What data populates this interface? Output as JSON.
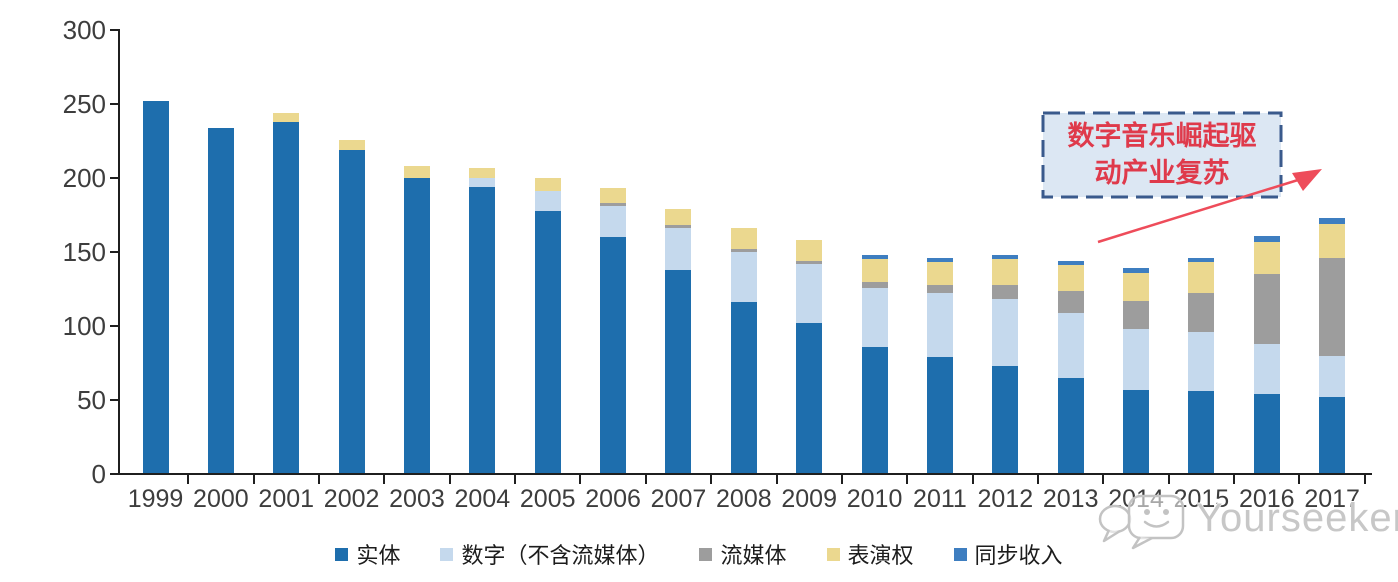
{
  "chart_data": {
    "type": "bar",
    "stacked": true,
    "title": "",
    "xlabel": "",
    "ylabel": "",
    "categories": [
      "1999",
      "2000",
      "2001",
      "2002",
      "2003",
      "2004",
      "2005",
      "2006",
      "2007",
      "2008",
      "2009",
      "2010",
      "2011",
      "2012",
      "2013",
      "2014",
      "2015",
      "2016",
      "2017"
    ],
    "series": [
      {
        "name": "实体",
        "color": "#1E6EAD",
        "values": [
          252,
          234,
          238,
          219,
          200,
          194,
          178,
          160,
          138,
          116,
          102,
          86,
          79,
          73,
          65,
          57,
          56,
          54,
          52
        ]
      },
      {
        "name": "数字（不含流媒体）",
        "color": "#C5D9ED",
        "values": [
          0,
          0,
          0,
          0,
          0,
          6,
          13,
          21,
          28,
          34,
          40,
          40,
          43,
          45,
          44,
          41,
          40,
          34,
          28
        ]
      },
      {
        "name": "流媒体",
        "color": "#9D9D9D",
        "values": [
          0,
          0,
          0,
          0,
          0,
          0,
          0,
          2,
          2,
          2,
          2,
          4,
          6,
          10,
          15,
          19,
          26,
          47,
          66
        ]
      },
      {
        "name": "表演权",
        "color": "#EBD88F",
        "values": [
          0,
          0,
          6,
          7,
          8,
          7,
          9,
          10,
          11,
          14,
          14,
          15,
          15,
          17,
          17,
          19,
          21,
          22,
          23
        ]
      },
      {
        "name": "同步收入",
        "color": "#3E7EC0",
        "values": [
          0,
          0,
          0,
          0,
          0,
          0,
          0,
          0,
          0,
          0,
          0,
          3,
          3,
          3,
          3,
          3,
          3,
          4,
          4
        ]
      }
    ],
    "ylim": [
      0,
      300
    ],
    "yticks": [
      0,
      50,
      100,
      150,
      200,
      250,
      300
    ],
    "grid": false,
    "legend_position": "bottom",
    "axis_color": "#1f1f1f",
    "tick_label_color": "#3d3d3d"
  },
  "annotation": {
    "lines": [
      "数字音乐崛起驱",
      "动产业复苏"
    ],
    "text_color": "#DF3A4B",
    "box_fill": "#DCE7F3",
    "box_border": "#3A5A8C",
    "arrow_color": "#EE4C5A"
  },
  "watermark": {
    "text": "Yourseeker",
    "logo": "speech-bubbles-smiley-logo",
    "color": "#C7C7C7"
  }
}
